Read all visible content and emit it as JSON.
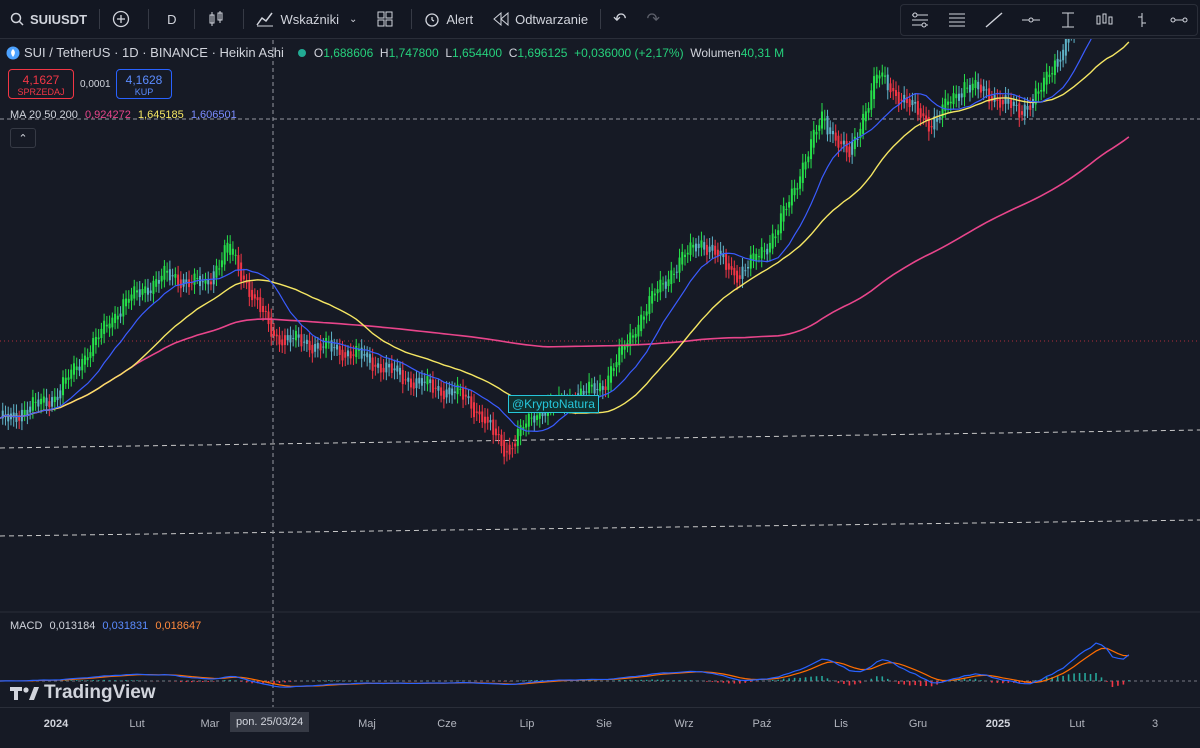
{
  "toolbar": {
    "symbol": "SUIUSDT",
    "interval": "D",
    "indicators_label": "Wskaźniki",
    "alert_label": "Alert",
    "replay_label": "Odtwarzanie"
  },
  "legend": {
    "title": "SUI / TetherUS · 1D · BINANCE · Heikin Ashi",
    "o_label": "O",
    "o_value": "1,688606",
    "h_label": "H",
    "h_value": "1,747800",
    "l_label": "L",
    "l_value": "1,654400",
    "c_label": "C",
    "c_value": "1,696125",
    "change": "+0,036000 (+2,17%)",
    "volume_label": "Wolumen",
    "volume_value": "40,31 M"
  },
  "trade": {
    "sell_price": "4,1627",
    "sell_label": "SPRZEDAJ",
    "spread": "0,0001",
    "buy_price": "4,1628",
    "buy_label": "KUP"
  },
  "ma_legend": {
    "label": "MA 20 50 200",
    "v1": "0,924272",
    "v2": "1,645185",
    "v3": "1,606501"
  },
  "macd_legend": {
    "label": "MACD",
    "v1": "0,013184",
    "v2": "0,031831",
    "v3": "0,018647"
  },
  "watermark": "@KryptoNatura",
  "logo": "TradingView",
  "colors": {
    "up": "#26e04a",
    "down": "#f23645",
    "neutral": "#5fb3c8",
    "ma20": "#3a5cff",
    "ma50": "#f5e663",
    "ma200": "#e8458b",
    "macd": "#2962ff",
    "signal": "#ff6d00",
    "hist_pos": "#26a69a",
    "hist_neg": "#f23645"
  },
  "chart_data": {
    "type": "candlestick",
    "x_ticks": [
      "2024",
      "Lut",
      "Mar",
      "Maj",
      "Cze",
      "Lip",
      "Sie",
      "Wrz",
      "Paź",
      "Lis",
      "Gru",
      "2025",
      "Lut",
      "3"
    ],
    "crosshair_date": "pon. 25/03/24",
    "ylim": [
      0.3,
      5.0
    ],
    "price_path": [
      {
        "day": 0,
        "price": 0.75
      },
      {
        "day": 20,
        "price": 0.85
      },
      {
        "day": 45,
        "price": 1.35
      },
      {
        "day": 60,
        "price": 1.55
      },
      {
        "day": 75,
        "price": 1.48
      },
      {
        "day": 83,
        "price": 1.78
      },
      {
        "day": 100,
        "price": 1.15
      },
      {
        "day": 130,
        "price": 1.05
      },
      {
        "day": 150,
        "price": 0.92
      },
      {
        "day": 170,
        "price": 0.85
      },
      {
        "day": 185,
        "price": 0.65
      },
      {
        "day": 195,
        "price": 0.78
      },
      {
        "day": 220,
        "price": 0.9
      },
      {
        "day": 240,
        "price": 1.45
      },
      {
        "day": 255,
        "price": 1.85
      },
      {
        "day": 270,
        "price": 1.55
      },
      {
        "day": 283,
        "price": 1.9
      },
      {
        "day": 300,
        "price": 3.4
      },
      {
        "day": 310,
        "price": 2.8
      },
      {
        "day": 320,
        "price": 4.2
      },
      {
        "day": 330,
        "price": 3.7
      },
      {
        "day": 340,
        "price": 3.3
      },
      {
        "day": 352,
        "price": 4.0
      },
      {
        "day": 362,
        "price": 3.8
      },
      {
        "day": 372,
        "price": 3.5
      },
      {
        "day": 380,
        "price": 3.9
      },
      {
        "day": 392,
        "price": 5.4
      },
      {
        "day": 400,
        "price": 6.9
      },
      {
        "day": 405,
        "price": 5.6
      },
      {
        "day": 412,
        "price": 7.2
      }
    ]
  }
}
